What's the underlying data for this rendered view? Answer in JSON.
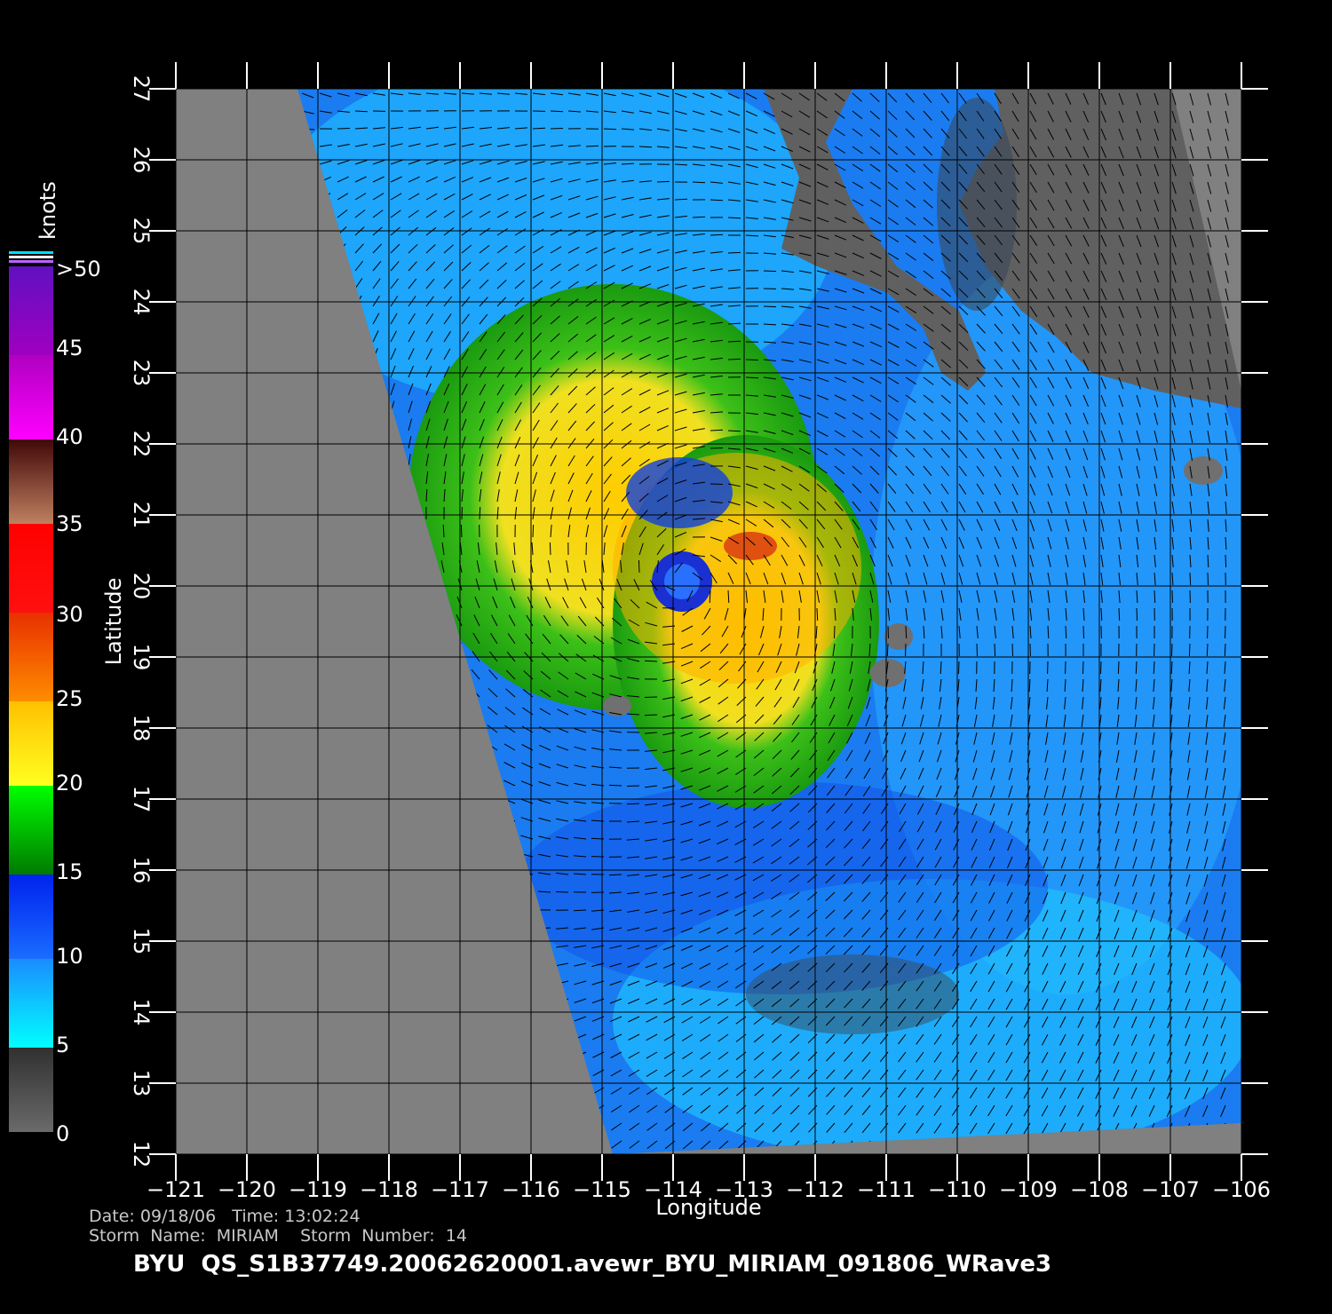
{
  "map": {
    "x_axis": {
      "label": "Longitude",
      "ticks": [
        "−121",
        "−120",
        "−119",
        "−118",
        "−117",
        "−116",
        "−115",
        "−114",
        "−113",
        "−112",
        "−111",
        "−110",
        "−109",
        "−108",
        "−107",
        "−106"
      ]
    },
    "y_axis": {
      "label": "Latitude",
      "ticks": [
        "27",
        "26",
        "25",
        "24",
        "23",
        "22",
        "21",
        "20",
        "19",
        "18",
        "17",
        "16",
        "15",
        "14",
        "13",
        "12"
      ]
    }
  },
  "colorbar": {
    "unit": "knots",
    "labels": [
      "0",
      "5",
      "10",
      "15",
      "20",
      "25",
      "30",
      "35",
      "40",
      "45",
      ">50"
    ]
  },
  "footer": {
    "line1": "Date: 09/18/06   Time: 13:02:24",
    "line2": "Storm  Name:  MIRIAM    Storm  Number:  14",
    "title": "BYU  QS_S1B37749.20062620001.avewr_BYU_MIRIAM_091806_WRave3"
  }
}
